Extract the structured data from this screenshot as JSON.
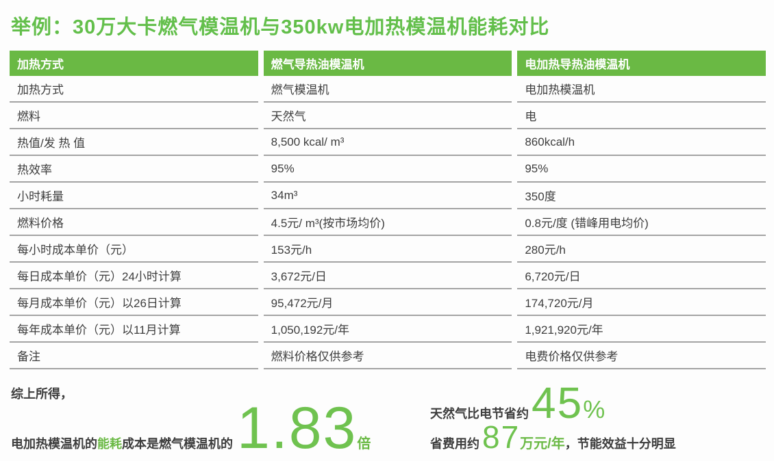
{
  "title": "举例：30万大卡燃气模温机与350kw电加热模温机能耗对比",
  "table": {
    "headers": [
      "加热方式",
      "燃气导热油模温机",
      "电加热导热油模温机"
    ],
    "rows": [
      [
        "加热方式",
        "燃气模温机",
        "电加热模温机"
      ],
      [
        "燃料",
        "天然气",
        "电"
      ],
      [
        "热值/发 热 值",
        "8,500 kcal/ m³",
        "860kcal/h"
      ],
      [
        "热效率",
        "95%",
        "95%"
      ],
      [
        "小时耗量",
        "34m³",
        "350度"
      ],
      [
        "燃料价格",
        "4.5元/ m³(按市场均价)",
        "0.8元/度 (错峰用电均价)"
      ],
      [
        "每小时成本单价（元）",
        "153元/h",
        "280元/h"
      ],
      [
        "每日成本单价（元）24小时计算",
        "3,672元/日",
        "6,720元/日"
      ],
      [
        "每月成本单价（元）以26日计算",
        "95,472元/月",
        "174,720元/月"
      ],
      [
        "每年成本单价（元）以11月计算",
        "1,050,192元/年",
        "1,921,920元/年"
      ],
      [
        "备注",
        "燃料价格仅供参考",
        "电费价格仅供参考"
      ]
    ]
  },
  "summary": {
    "conclusion_intro": "综上所得，",
    "ratio_prefix": "电加热模温机的",
    "ratio_highlight": "能耗",
    "ratio_mid": "成本是燃气模温机的",
    "ratio_value": "1.83",
    "ratio_unit": "倍",
    "savings_pct_label": "天然气比电节省约",
    "savings_pct_value": "45",
    "savings_pct_unit": "%",
    "savings_cost_label": "省费用约",
    "savings_cost_value": "87",
    "savings_cost_unit": "万元/年",
    "savings_cost_suffix": "，节能效益十分明显"
  },
  "colors": {
    "brand_green": "#6ab944",
    "number_green": "#6fc24f",
    "title_green": "#63bf4b",
    "body_text": "#3d3d3d",
    "divider_gray": "#a3a3a3",
    "header_text": "#ffffff"
  }
}
